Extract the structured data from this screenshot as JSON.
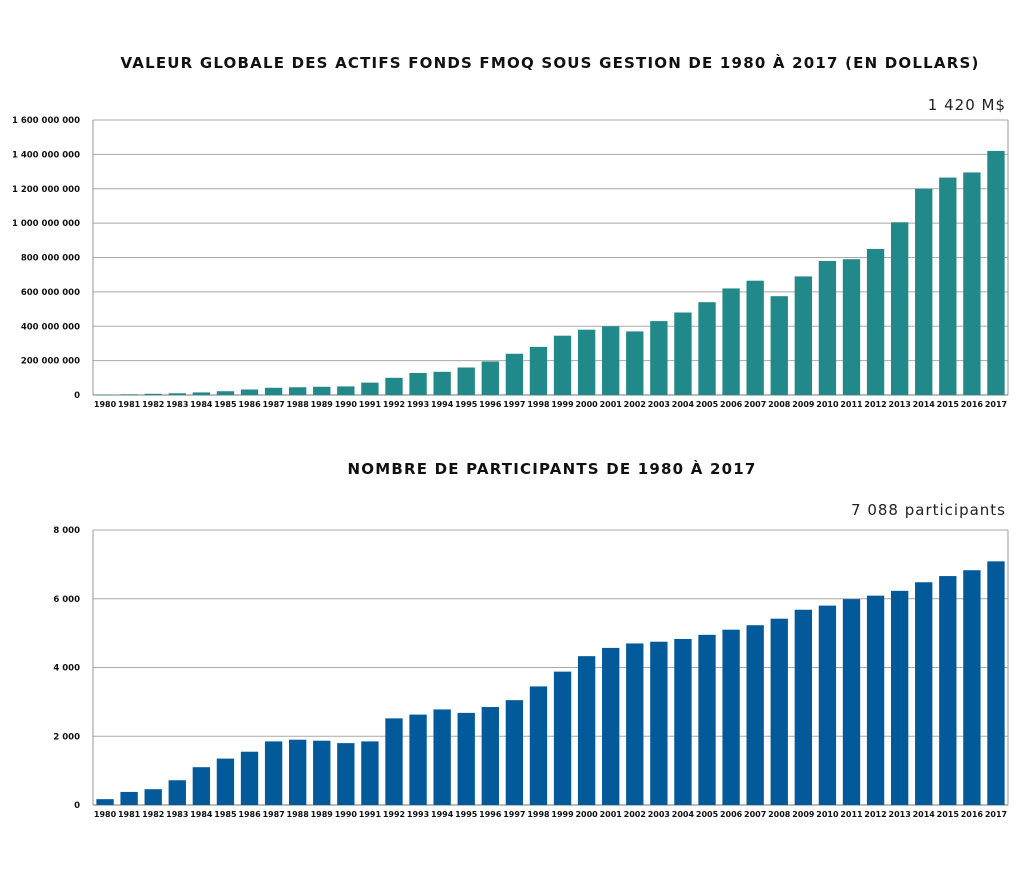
{
  "chart_data": [
    {
      "type": "bar",
      "title": "VALEUR GLOBALE DES ACTIFS FONDS FMOQ SOUS GESTION DE 1980 À 2017 (EN DOLLARS)",
      "callout": "1 420 M$",
      "color": "#22898a",
      "categories": [
        "1980",
        "1981",
        "1982",
        "1983",
        "1984",
        "1985",
        "1986",
        "1987",
        "1988",
        "1989",
        "1990",
        "1991",
        "1992",
        "1993",
        "1994",
        "1995",
        "1996",
        "1997",
        "1998",
        "1999",
        "2000",
        "2001",
        "2002",
        "2003",
        "2004",
        "2005",
        "2006",
        "2007",
        "2008",
        "2009",
        "2010",
        "2011",
        "2012",
        "2013",
        "2014",
        "2015",
        "2016",
        "2017"
      ],
      "values": [
        2000000,
        4000000,
        7000000,
        10000000,
        15000000,
        22000000,
        32000000,
        42000000,
        45000000,
        48000000,
        50000000,
        72000000,
        100000000,
        128000000,
        135000000,
        160000000,
        195000000,
        240000000,
        280000000,
        345000000,
        380000000,
        400000000,
        370000000,
        430000000,
        480000000,
        540000000,
        620000000,
        665000000,
        575000000,
        690000000,
        780000000,
        790000000,
        850000000,
        1005000000,
        1200000000,
        1265000000,
        1295000000,
        1420000000
      ],
      "ylim": [
        0,
        1600000000
      ],
      "yticks": [
        0,
        200000000,
        400000000,
        600000000,
        800000000,
        1000000000,
        1200000000,
        1400000000,
        1600000000
      ],
      "ytick_labels": [
        "0",
        "200 000 000",
        "400 000 000",
        "600 000 000",
        "800 000 000",
        "1 000 000 000",
        "1 200 000 000",
        "1 400 000 000",
        "1 600 000 000"
      ],
      "grid": true
    },
    {
      "type": "bar",
      "title": "NOMBRE DE PARTICIPANTS DE 1980 À 2017",
      "callout": "7 088 participants",
      "color": "#035a9a",
      "categories": [
        "1980",
        "1981",
        "1982",
        "1983",
        "1984",
        "1985",
        "1986",
        "1987",
        "1988",
        "1989",
        "1990",
        "1991",
        "1992",
        "1993",
        "1994",
        "1995",
        "1996",
        "1997",
        "1998",
        "1999",
        "2000",
        "2001",
        "2002",
        "2003",
        "2004",
        "2005",
        "2006",
        "2007",
        "2008",
        "2009",
        "2010",
        "2011",
        "2012",
        "2013",
        "2014",
        "2015",
        "2016",
        "2017"
      ],
      "values": [
        170,
        380,
        460,
        720,
        1100,
        1350,
        1550,
        1850,
        1900,
        1870,
        1800,
        1850,
        2520,
        2630,
        2780,
        2680,
        2850,
        3050,
        3450,
        3880,
        4330,
        4570,
        4700,
        4750,
        4830,
        4950,
        5100,
        5230,
        5420,
        5680,
        5800,
        5990,
        6090,
        6230,
        6480,
        6660,
        6830,
        7088
      ],
      "ylim": [
        0,
        8000
      ],
      "yticks": [
        0,
        2000,
        4000,
        6000,
        8000
      ],
      "ytick_labels": [
        "0",
        "2 000",
        "4 000",
        "6 000",
        "8 000"
      ],
      "grid": true
    }
  ]
}
